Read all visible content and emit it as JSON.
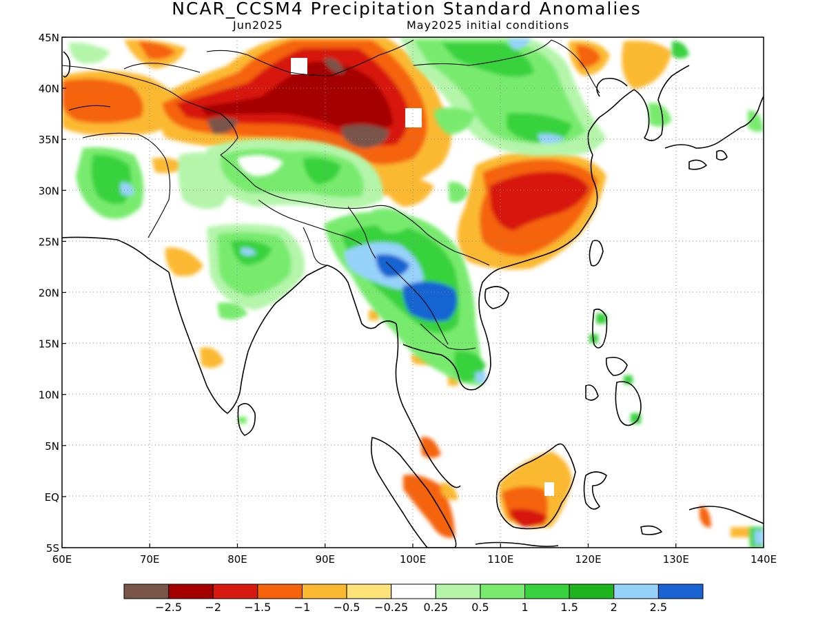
{
  "title": "NCAR_CCSM4 Precipitation Standard Anomalies",
  "subtitle_left": "Jun2025",
  "subtitle_right": "May2025 initial conditions",
  "lon_ticks": [
    "60E",
    "70E",
    "80E",
    "90E",
    "100E",
    "110E",
    "120E",
    "130E",
    "140E"
  ],
  "lat_ticks": [
    "45N",
    "40N",
    "35N",
    "30N",
    "25N",
    "20N",
    "15N",
    "10N",
    "5N",
    "EQ",
    "5S"
  ],
  "lon_values": [
    60,
    70,
    80,
    90,
    100,
    110,
    120,
    130,
    140
  ],
  "lat_values": [
    45,
    40,
    35,
    30,
    25,
    20,
    15,
    10,
    5,
    0,
    -5
  ],
  "colorbar": {
    "colors": [
      "#795548",
      "#a50000",
      "#d7190f",
      "#f5640a",
      "#fbb932",
      "#ffe278",
      "#ffffff",
      "#b4f5aa",
      "#78eb6e",
      "#37d23c",
      "#1eb41e",
      "#96d2fa",
      "#1964d2"
    ],
    "labels": [
      "−2.5",
      "−2",
      "−1.5",
      "−1",
      "−0.5",
      "−0.25",
      "0.25",
      "0.5",
      "1",
      "1.5",
      "2",
      "2.5"
    ]
  },
  "map_extent": {
    "lon_min": 60,
    "lon_max": 140,
    "lat_min": -5,
    "lat_max": 45
  }
}
